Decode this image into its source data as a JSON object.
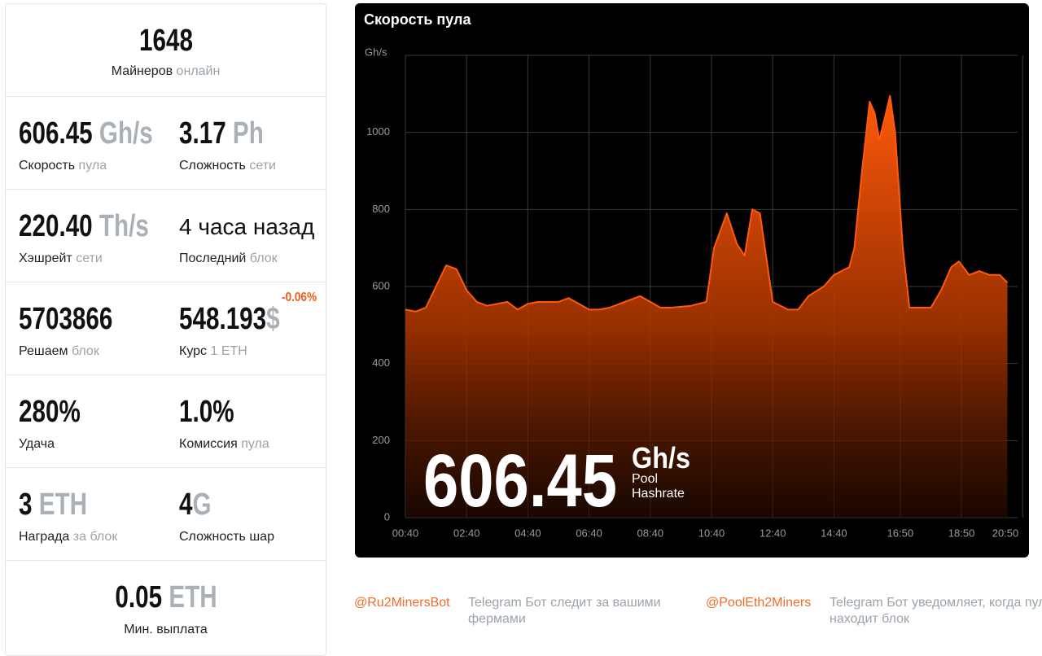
{
  "stats": {
    "miners": {
      "value": "1648",
      "label": "Майнеров",
      "label_muted": "онлайн"
    },
    "rows": [
      [
        {
          "value": "606.45",
          "unit": "Gh/s",
          "label": "Скорость",
          "label_muted": "пула"
        },
        {
          "value": "3.17",
          "unit": "Ph",
          "label": "Сложность",
          "label_muted": "сети"
        }
      ],
      [
        {
          "value": "220.40",
          "unit": "Th/s",
          "label": "Хэшрейт",
          "label_muted": "сети"
        },
        {
          "value": "4 часа назад",
          "label": "Последний",
          "label_muted": "блок"
        }
      ],
      [
        {
          "value": "5703866",
          "label": "Решаем",
          "label_muted": "блок"
        },
        {
          "value": "548.193",
          "unit": "$",
          "change": "-0.06%",
          "label": "Курс",
          "label_muted": "1 ETH"
        }
      ],
      [
        {
          "value": "280%",
          "label": "Удача"
        },
        {
          "value": "1.0%",
          "label": "Комиссия",
          "label_muted": "пула"
        }
      ],
      [
        {
          "value": "3",
          "unit": "ETH",
          "label": "Награда",
          "label_muted": "за блок"
        },
        {
          "value": "4",
          "unit": "G",
          "label": "Сложность шар"
        }
      ]
    ],
    "min_payout": {
      "value": "0.05",
      "unit": "ETH",
      "label": "Мин. выплата"
    }
  },
  "chart_data": {
    "type": "area",
    "title": "Скорость пула",
    "y_label": "Gh/s",
    "color": "#ff5a0a",
    "x": [
      40,
      60,
      80,
      100,
      120,
      140,
      160,
      180,
      200,
      220,
      240,
      260,
      280,
      300,
      320,
      340,
      360,
      380,
      400,
      420,
      440,
      460,
      480,
      500,
      520,
      540,
      560,
      600,
      630,
      645,
      670,
      690,
      705,
      720,
      735,
      760,
      790,
      810,
      830,
      860,
      880,
      910,
      920,
      935,
      950,
      960,
      969,
      980,
      990,
      1000,
      1015,
      1028,
      1050,
      1070,
      1090,
      1110,
      1125,
      1145,
      1165,
      1185,
      1205,
      1220
    ],
    "values": [
      540,
      535,
      545,
      600,
      655,
      645,
      590,
      560,
      550,
      555,
      560,
      540,
      555,
      560,
      560,
      560,
      570,
      555,
      540,
      540,
      545,
      555,
      565,
      575,
      560,
      545,
      545,
      550,
      560,
      700,
      790,
      710,
      680,
      800,
      790,
      560,
      540,
      540,
      575,
      600,
      630,
      650,
      700,
      900,
      1080,
      1050,
      980,
      1040,
      1095,
      1000,
      700,
      545,
      545,
      545,
      590,
      650,
      665,
      630,
      640,
      630,
      630,
      610
    ],
    "xlim": [
      40,
      1240
    ],
    "ylim": [
      0,
      1200
    ],
    "xticks": [
      {
        "value": 40,
        "label": "00:40"
      },
      {
        "value": 160,
        "label": "02:40"
      },
      {
        "value": 280,
        "label": "04:40"
      },
      {
        "value": 400,
        "label": "06:40"
      },
      {
        "value": 520,
        "label": "08:40"
      },
      {
        "value": 640,
        "label": "10:40"
      },
      {
        "value": 760,
        "label": "12:40"
      },
      {
        "value": 880,
        "label": "14:40"
      },
      {
        "value": 1010,
        "label": "16:50"
      },
      {
        "value": 1130,
        "label": "18:50"
      },
      {
        "value": 1250,
        "label": "20:50"
      }
    ],
    "yticks": [
      0,
      200,
      400,
      600,
      800,
      1000
    ],
    "grid": true,
    "annotation": {
      "value": "606.45",
      "unit": "Gh/s",
      "label_line1": "Pool",
      "label_line2": "Hashrate"
    }
  },
  "footer": [
    {
      "handle": "@Ru2MinersBot",
      "text": "Telegram Бот следит за вашими фермами"
    },
    {
      "handle": "@PoolEth2Miners",
      "text": "Telegram Бот уведомляет, когда пул находит блок"
    }
  ]
}
